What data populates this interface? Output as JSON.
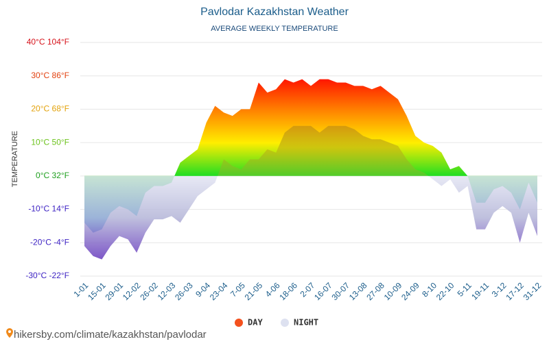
{
  "chart_data": {
    "type": "area",
    "title": "Pavlodar Kazakhstan Weather",
    "subtitle": "AVERAGE WEEKLY TEMPERATURE",
    "y_label": "TEMPERATURE",
    "source": "hikersby.com/climate/kazakhstan/pavlodar",
    "categories": [
      "1-01",
      null,
      "15-01",
      null,
      "29-01",
      null,
      "12-02",
      null,
      "26-02",
      null,
      "12-03",
      null,
      "26-03",
      null,
      "9-04",
      null,
      "23-04",
      null,
      "7-05",
      null,
      "21-05",
      null,
      "4-06",
      null,
      "18-06",
      null,
      "2-07",
      null,
      "16-07",
      null,
      "30-07",
      null,
      "13-08",
      null,
      "27-08",
      null,
      "10-09",
      null,
      "24-09",
      null,
      "8-10",
      null,
      "22-10",
      null,
      "5-11",
      null,
      "19-11",
      null,
      "3-12",
      null,
      "17-12",
      null,
      "31-12"
    ],
    "series": [
      {
        "name": "DAY",
        "color": "#f4511e",
        "values": [
          -14,
          -17,
          -16,
          -11,
          -9,
          -10,
          -12,
          -5,
          -3,
          -3,
          -2,
          4,
          6,
          8,
          16,
          21,
          19,
          18,
          20,
          20,
          28,
          25,
          26,
          29,
          28,
          29,
          27,
          29,
          29,
          28,
          28,
          27,
          27,
          26,
          27,
          25,
          23,
          18,
          12,
          10,
          9,
          7,
          2,
          3,
          0,
          -8,
          -8,
          -4,
          -3,
          -5,
          -10,
          -2,
          -8
        ]
      },
      {
        "name": "NIGHT",
        "color": "#dde1f0",
        "values": [
          -21,
          -24,
          -25,
          -21,
          -18,
          -19,
          -23,
          -17,
          -13,
          -13,
          -12,
          -14,
          -10,
          -6,
          -4,
          -2,
          5,
          3,
          2,
          5,
          5,
          8,
          7,
          13,
          15,
          15,
          15,
          13,
          15,
          15,
          15,
          14,
          12,
          11,
          11,
          10,
          9,
          5,
          2,
          1,
          -1,
          -3,
          -1,
          -5,
          -3,
          -16,
          -16,
          -11,
          -9,
          -11,
          -20,
          -11,
          -18
        ]
      }
    ],
    "ylim": [
      -30,
      40
    ],
    "yticks": [
      {
        "value": -30,
        "label": "-30°C -22°F"
      },
      {
        "value": -20,
        "label": "-20°C -4°F"
      },
      {
        "value": -10,
        "label": "-10°C 14°F"
      },
      {
        "value": 0,
        "label": "0°C 32°F"
      },
      {
        "value": 10,
        "label": "10°C 50°F"
      },
      {
        "value": 20,
        "label": "20°C 68°F"
      },
      {
        "value": 30,
        "label": "30°C 86°F"
      },
      {
        "value": 40,
        "label": "40°C 104°F"
      }
    ],
    "ytick_colors": [
      "#3a1fc2",
      "#3a1fc2",
      "#3a1fc2",
      "#1c9e1c",
      "#6cc31c",
      "#e3a20b",
      "#e2400e",
      "#d6131b"
    ],
    "grid": true
  }
}
